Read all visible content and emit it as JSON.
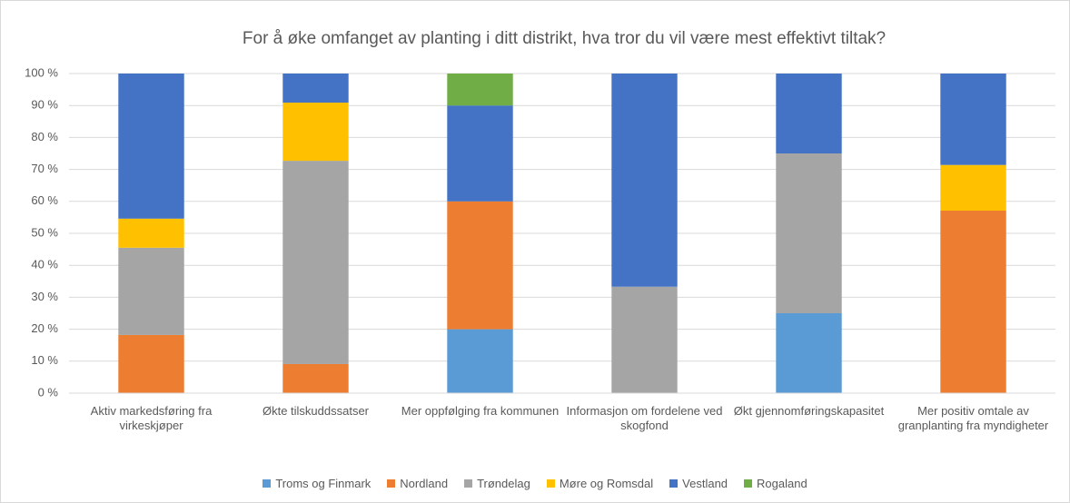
{
  "chart_data": {
    "type": "bar",
    "stacked": true,
    "title": "For å øke omfanget av planting i ditt distrikt, hva tror du vil være mest effektivt tiltak?",
    "categories": [
      "Aktiv markedsføring fra virkeskjøper",
      "Økte tilskuddssatser",
      "Mer oppfølging fra kommunen",
      "Informasjon om fordelene ved skogfond",
      "Økt gjennomføringskapasitet",
      "Mer positiv omtale av granplanting fra myndigheter"
    ],
    "series": [
      {
        "name": "Troms og Finmark",
        "color": "#5b9bd5",
        "values": [
          0,
          0,
          20,
          0,
          25,
          0
        ]
      },
      {
        "name": "Nordland",
        "color": "#ed7d31",
        "values": [
          18.2,
          9.1,
          40,
          0,
          0,
          57.1
        ]
      },
      {
        "name": "Trøndelag",
        "color": "#a5a5a5",
        "values": [
          27.3,
          63.6,
          0,
          33.3,
          50,
          0
        ]
      },
      {
        "name": "Møre og Romsdal",
        "color": "#ffc000",
        "values": [
          9.1,
          18.2,
          0,
          0,
          0,
          14.3
        ]
      },
      {
        "name": "Vestland",
        "color": "#4472c4",
        "values": [
          45.4,
          9.1,
          30,
          66.7,
          25,
          28.6
        ]
      },
      {
        "name": "Rogaland",
        "color": "#70ad47",
        "values": [
          0,
          0,
          10,
          0,
          0,
          0
        ]
      }
    ],
    "ylim": [
      0,
      100
    ],
    "yticks": [
      {
        "value": 0,
        "label": "0 %"
      },
      {
        "value": 10,
        "label": "10 %"
      },
      {
        "value": 20,
        "label": "20 %"
      },
      {
        "value": 30,
        "label": "30 %"
      },
      {
        "value": 40,
        "label": "40 %"
      },
      {
        "value": 50,
        "label": "50 %"
      },
      {
        "value": 60,
        "label": "60 %"
      },
      {
        "value": 70,
        "label": "70 %"
      },
      {
        "value": 80,
        "label": "80 %"
      },
      {
        "value": 90,
        "label": "90 %"
      },
      {
        "value": 100,
        "label": "100 %"
      }
    ],
    "grid": true,
    "legend": "bottom"
  }
}
